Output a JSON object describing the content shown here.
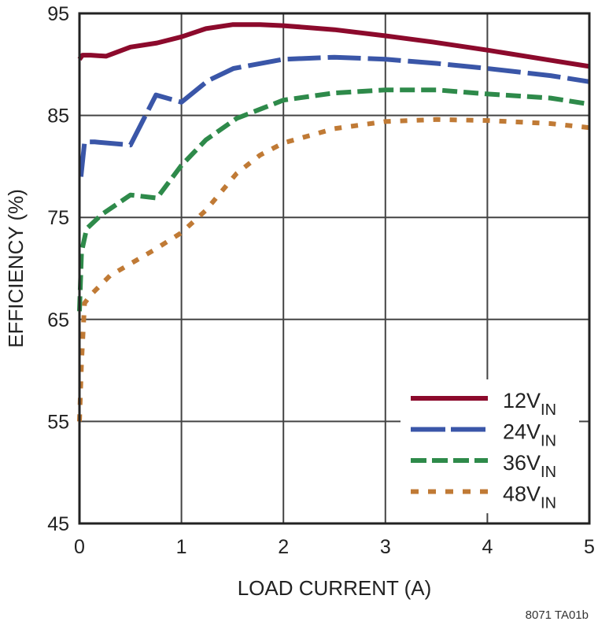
{
  "chart_data": {
    "type": "line",
    "title": "",
    "xlabel": "LOAD CURRENT (A)",
    "ylabel": "EFFICIENCY (%)",
    "xlim": [
      0,
      5
    ],
    "ylim": [
      45,
      95
    ],
    "xticks": [
      0,
      1,
      2,
      3,
      4,
      5
    ],
    "yticks": [
      45,
      55,
      65,
      75,
      85,
      95
    ],
    "grid": true,
    "legend_position": "bottom-right",
    "series": [
      {
        "name": "12V",
        "name_sub": "IN",
        "color": "#8c0a2c",
        "style": "solid",
        "x": [
          0,
          0.03,
          0.11,
          0.26,
          0.5,
          0.76,
          1.0,
          1.24,
          1.5,
          1.77,
          2.0,
          2.5,
          3.0,
          3.46,
          4.0,
          4.62,
          5.0
        ],
        "y": [
          90.5,
          90.9,
          90.9,
          90.8,
          91.7,
          92.1,
          92.7,
          93.5,
          93.9,
          93.9,
          93.8,
          93.4,
          92.8,
          92.2,
          91.4,
          90.4,
          89.8
        ]
      },
      {
        "name": "24V",
        "name_sub": "IN",
        "color": "#3a56a8",
        "style": "long-dash",
        "x": [
          0.015,
          0.05,
          0.15,
          0.5,
          0.75,
          1.0,
          1.26,
          1.51,
          2.0,
          2.5,
          3.0,
          3.5,
          4.0,
          4.62,
          5.0
        ],
        "y": [
          79,
          82.4,
          82.4,
          82.1,
          87,
          86.3,
          88.4,
          89.6,
          90.5,
          90.7,
          90.5,
          90.1,
          89.6,
          88.9,
          88.3
        ]
      },
      {
        "name": "36V",
        "name_sub": "IN",
        "color": "#2e8a4a",
        "style": "dash",
        "x": [
          0,
          0.02,
          0.07,
          0.22,
          0.5,
          0.76,
          1.0,
          1.24,
          1.54,
          2.0,
          2.5,
          3.0,
          3.5,
          4.0,
          4.62,
          5.0
        ],
        "y": [
          65.8,
          71.6,
          73.9,
          75.3,
          77.2,
          76.9,
          80.1,
          82.6,
          84.7,
          86.5,
          87.2,
          87.5,
          87.5,
          87.1,
          86.7,
          86.1
        ]
      },
      {
        "name": "48V",
        "name_sub": "IN",
        "color": "#c07a35",
        "style": "dot",
        "x": [
          0,
          0.02,
          0.05,
          0.11,
          0.3,
          0.73,
          1.0,
          1.24,
          1.54,
          1.77,
          2.0,
          2.5,
          3.0,
          3.5,
          4.0,
          4.62,
          5.0
        ],
        "y": [
          55,
          60.8,
          66.6,
          67.4,
          69.3,
          71.8,
          73.5,
          75.7,
          79.3,
          81.1,
          82.3,
          83.7,
          84.4,
          84.6,
          84.5,
          84.2,
          83.8
        ]
      }
    ],
    "annotation": "8071 TA01b"
  }
}
